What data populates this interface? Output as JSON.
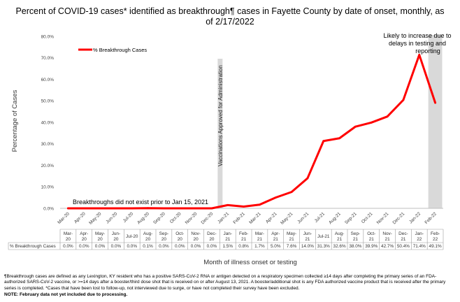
{
  "chart_data": {
    "type": "line",
    "title_line1": "Percent of COVID-19 cases* identified as breakthrough¶ cases in Fayette County by date of onset, monthly, as",
    "title_line2": "of 2/17/2022",
    "ylabel": "Percentage of Cases",
    "xlabel": "Month of illness onset or testing",
    "ylim": [
      0,
      80
    ],
    "y_ticks": [
      "0.0%",
      "10.0%",
      "20.0%",
      "30.0%",
      "40.0%",
      "50.0%",
      "60.0%",
      "70.0%",
      "80.0%"
    ],
    "categories": [
      "Mar-20",
      "Apr-20",
      "May-20",
      "Jun-20",
      "Jul-20",
      "Aug-20",
      "Sep-20",
      "Oct-20",
      "Nov-20",
      "Dec-20",
      "Jan-21",
      "Feb-21",
      "Mar-21",
      "Apr-21",
      "May-21",
      "Jun-21",
      "Jul-21",
      "Aug-21",
      "Sep-21",
      "Oct-21",
      "Nov-21",
      "Dec-21",
      "Jan-22",
      "Feb-22"
    ],
    "table_categories": [
      "Mar-\n20",
      "Apr-\n20",
      "May-\n20",
      "Jun-\n20",
      "Jul-20",
      "Aug-\n20",
      "Sep-\n20",
      "Oct-\n20",
      "Nov-\n20",
      "Dec-\n20",
      "Jan-\n21",
      "Feb-\n21",
      "Mar-\n21",
      "Apr-\n21",
      "May-\n21",
      "Jun-\n21",
      "Jul-21",
      "Aug-\n21",
      "Sep-\n21",
      "Oct-\n21",
      "Nov-\n21",
      "Dec-\n21",
      "Jan-\n22",
      "Feb-\n22"
    ],
    "series": [
      {
        "name": "% Breakthrough Cases",
        "color": "#ff0000",
        "values": [
          0.0,
          0.0,
          0.0,
          0.0,
          0.0,
          0.1,
          0.0,
          0.0,
          0.0,
          0.0,
          1.5,
          0.8,
          1.7,
          5.0,
          7.6,
          14.0,
          31.3,
          32.6,
          38.0,
          39.9,
          42.7,
          50.4,
          71.4,
          49.1
        ],
        "labels": [
          "0.0%",
          "0.0%",
          "0.0%",
          "0.0%",
          "0.0%",
          "0.1%",
          "0.0%",
          "0.0%",
          "0.0%",
          "0.0%",
          "1.5%",
          "0.8%",
          "1.7%",
          "5.0%",
          "7.6%",
          "14.0%",
          "31.3%",
          "32.6%",
          "38.0%",
          "39.9%",
          "42.7%",
          "50.4%",
          "71.4%",
          "49.1%"
        ]
      }
    ],
    "legend": {
      "label": "% Breakthrough Cases",
      "placement": "top-left"
    },
    "vaccination_marker": {
      "category": "Dec-20",
      "label": "Vaccinations Approved for Administration",
      "color": "#d9d9d9"
    },
    "shaded_region": {
      "category": "Feb-22",
      "color": "#d9d9d9"
    },
    "annotation_pre": "Breakthroughs did not exist prior to Jan 15, 2021",
    "annotation_recent": [
      "Likely to increase due to",
      "delays in testing and",
      "reporting"
    ],
    "table_row_label": "% Breakthrough Cases"
  },
  "footnotes": {
    "line1": "¶Breakthrough cases are defined as any Lexington, KY resident who has a positive SARS-CoV-2 RNA or antigen detected on a respiratory specimen collected ≥14 days after completing the primary series of an FDA-authorized SARS-CoV-2 vaccine, or >=14 days after a booster/third dose shot that is received on or after August 13, 2021.  A booster/additional shot is any FDA authorized vaccine product that is received after the primary series is completed. *Cases that have been lost to follow-up, not interviewed due to surge, or have not completed their survey have been excluded.",
    "note": "NOTE: February data not yet included due to processing."
  }
}
